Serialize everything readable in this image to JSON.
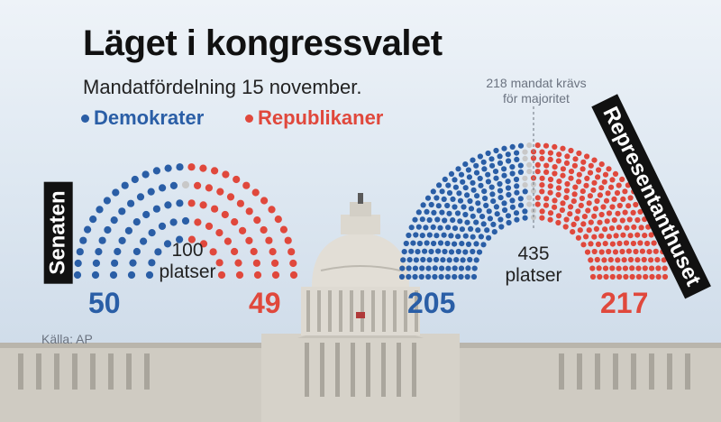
{
  "title": "Läget i kongressvalet",
  "subtitle": "Mandatfördelning 15 november.",
  "legend": {
    "dem": "Demokrater",
    "rep": "Republikaner"
  },
  "source": "Källa: AP",
  "colors": {
    "dem": "#2a5ea6",
    "rep": "#e0483c",
    "undecided": "#c8c8c8"
  },
  "senate": {
    "label": "Senaten",
    "seats_line1": "100",
    "seats_line2": "platser",
    "dem": "50",
    "rep": "49"
  },
  "house": {
    "label": "Representanthuset",
    "seats_line1": "435",
    "seats_line2": "platser",
    "dem": "205",
    "rep": "217",
    "majority_note_line1": "218 mandat krävs",
    "majority_note_line2": "för majoritet"
  },
  "chart_data": [
    {
      "type": "parliament",
      "chamber": "Senaten",
      "total_seats": 100,
      "series": [
        {
          "name": "Demokrater",
          "values": [
            50
          ]
        },
        {
          "name": "Republikaner",
          "values": [
            49
          ]
        }
      ],
      "undecided": 1
    },
    {
      "type": "parliament",
      "chamber": "Representanthuset",
      "total_seats": 435,
      "series": [
        {
          "name": "Demokrater",
          "values": [
            205
          ]
        },
        {
          "name": "Republikaner",
          "values": [
            217
          ]
        }
      ],
      "undecided": 13,
      "majority": 218
    }
  ]
}
